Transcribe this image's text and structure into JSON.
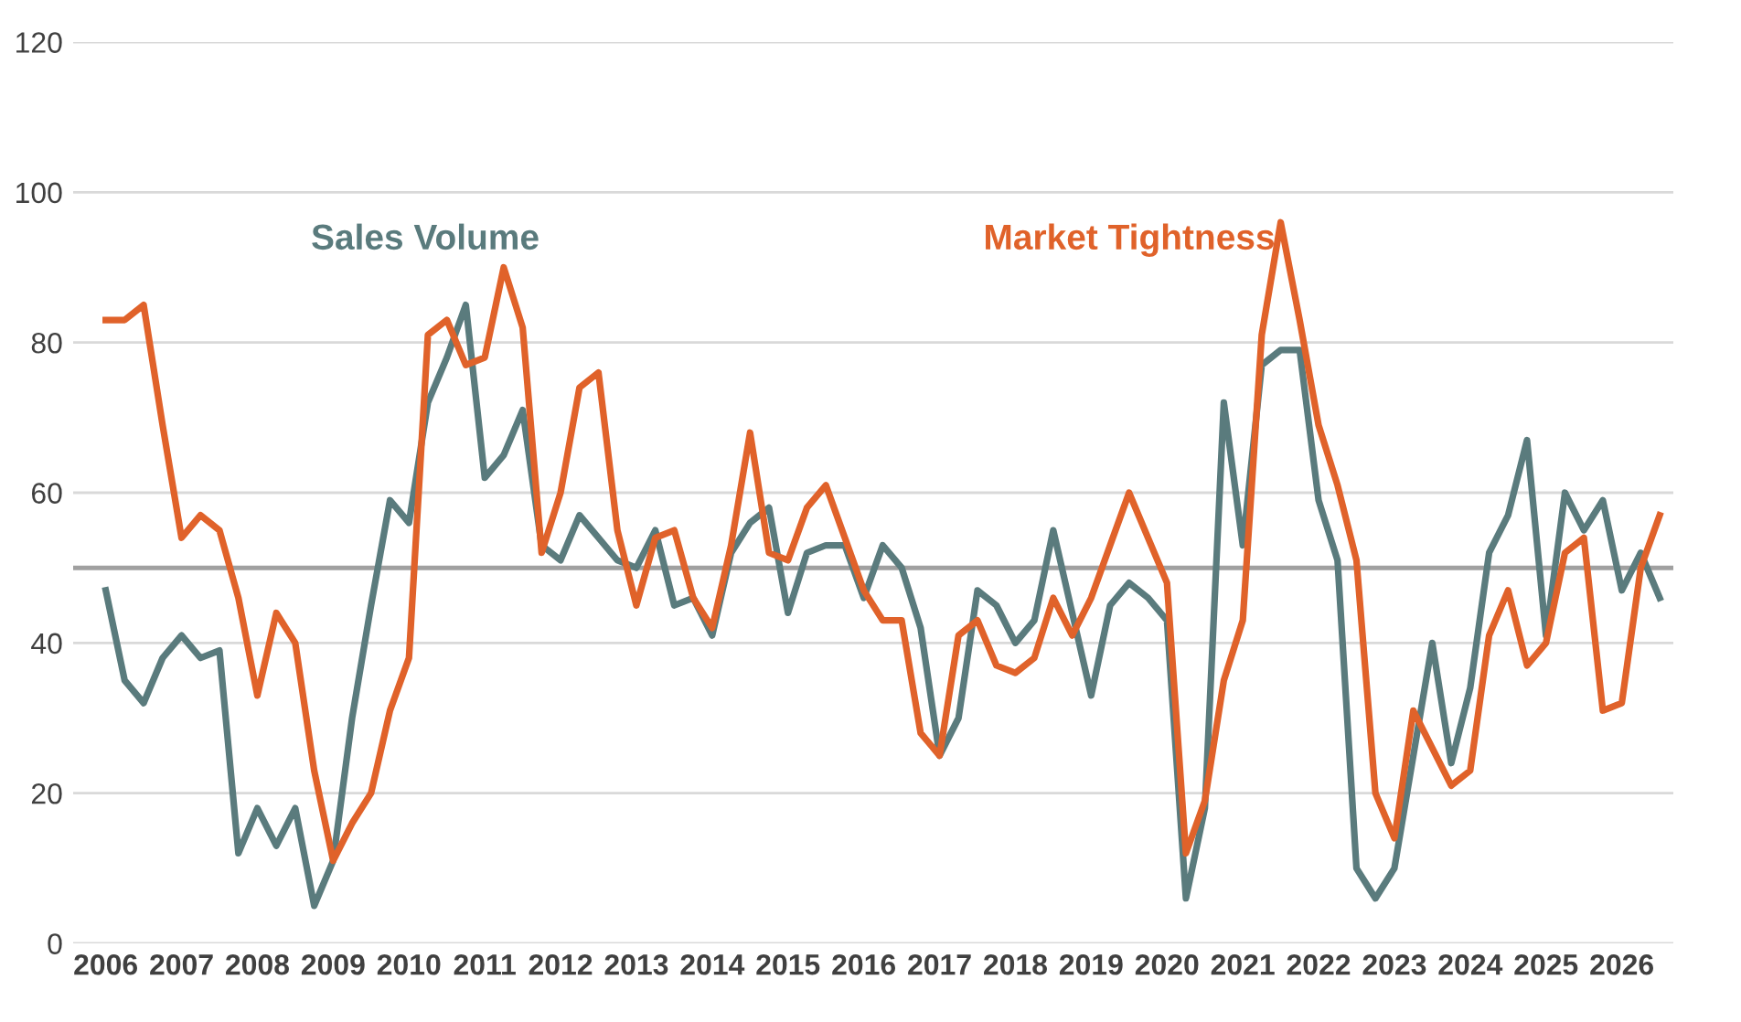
{
  "chart_data": {
    "type": "line",
    "x": [
      2006,
      2006.25,
      2006.5,
      2006.75,
      2007,
      2007.25,
      2007.5,
      2007.75,
      2008,
      2008.25,
      2008.5,
      2008.75,
      2009,
      2009.25,
      2009.5,
      2009.75,
      2010,
      2010.25,
      2010.5,
      2010.75,
      2011,
      2011.25,
      2011.5,
      2011.75,
      2012,
      2012.25,
      2012.5,
      2012.75,
      2013,
      2013.25,
      2013.5,
      2013.75,
      2014,
      2014.25,
      2014.5,
      2014.75,
      2015,
      2015.25,
      2015.5,
      2015.75,
      2016,
      2016.25,
      2016.5,
      2016.75,
      2017,
      2017.25,
      2017.5,
      2017.75,
      2018,
      2018.25,
      2018.5,
      2018.75,
      2019,
      2019.25,
      2019.5,
      2019.75,
      2020,
      2020.25,
      2020.5,
      2020.75,
      2021,
      2021.25,
      2021.5,
      2021.75,
      2022,
      2022.25,
      2022.5,
      2022.75,
      2023,
      2023.25,
      2023.5,
      2023.75,
      2024,
      2024.25,
      2024.5,
      2024.75,
      2025,
      2025.25,
      2025.5,
      2025.75,
      2026,
      2026.25,
      2026.5
    ],
    "series": [
      {
        "name": "Sales Volume",
        "color": "#5a7b7d",
        "values": [
          47,
          35,
          32,
          38,
          41,
          38,
          39,
          12,
          18,
          13,
          18,
          5,
          11,
          30,
          45,
          59,
          56,
          72,
          78,
          85,
          62,
          65,
          71,
          53,
          51,
          57,
          54,
          51,
          50,
          55,
          45,
          46,
          41,
          52,
          56,
          58,
          44,
          52,
          53,
          53,
          46,
          53,
          50,
          42,
          25,
          30,
          47,
          45,
          40,
          43,
          55,
          44,
          33,
          45,
          48,
          46,
          43,
          6,
          18,
          72,
          53,
          77,
          79,
          79,
          59,
          51,
          10,
          6,
          10,
          25,
          40,
          24,
          34,
          52,
          57,
          67,
          41,
          60,
          55,
          59,
          47,
          52,
          46
        ]
      },
      {
        "name": "Market Tightness",
        "color": "#e0622a",
        "values": [
          83,
          83,
          85,
          69,
          54,
          57,
          55,
          46,
          33,
          44,
          40,
          23,
          11,
          16,
          20,
          31,
          38,
          81,
          83,
          77,
          78,
          90,
          82,
          52,
          60,
          74,
          76,
          55,
          45,
          54,
          55,
          46,
          42,
          53,
          68,
          52,
          51,
          58,
          61,
          54,
          47,
          43,
          43,
          28,
          25,
          41,
          43,
          37,
          36,
          38,
          46,
          41,
          46,
          53,
          60,
          54,
          48,
          12,
          19,
          35,
          43,
          81,
          96,
          83,
          69,
          61,
          51,
          20,
          14,
          31,
          26,
          21,
          23,
          41,
          47,
          37,
          40,
          52,
          54,
          31,
          32,
          50,
          57
        ]
      }
    ],
    "xlim": [
      2005.57,
      2026.68
    ],
    "xticks": [
      2006,
      2007,
      2008,
      2009,
      2010,
      2011,
      2012,
      2013,
      2014,
      2015,
      2016,
      2017,
      2018,
      2019,
      2020,
      2021,
      2022,
      2023,
      2024,
      2025,
      2026
    ],
    "ylim": [
      0,
      120
    ],
    "yticks": [
      0,
      20,
      40,
      60,
      80,
      100,
      120
    ],
    "grid": "y",
    "legend": false,
    "marker": "none",
    "line_style": "solid",
    "ref_lines": [
      {
        "axis": "y",
        "value": 50,
        "color": "#a0a0a0"
      }
    ]
  }
}
